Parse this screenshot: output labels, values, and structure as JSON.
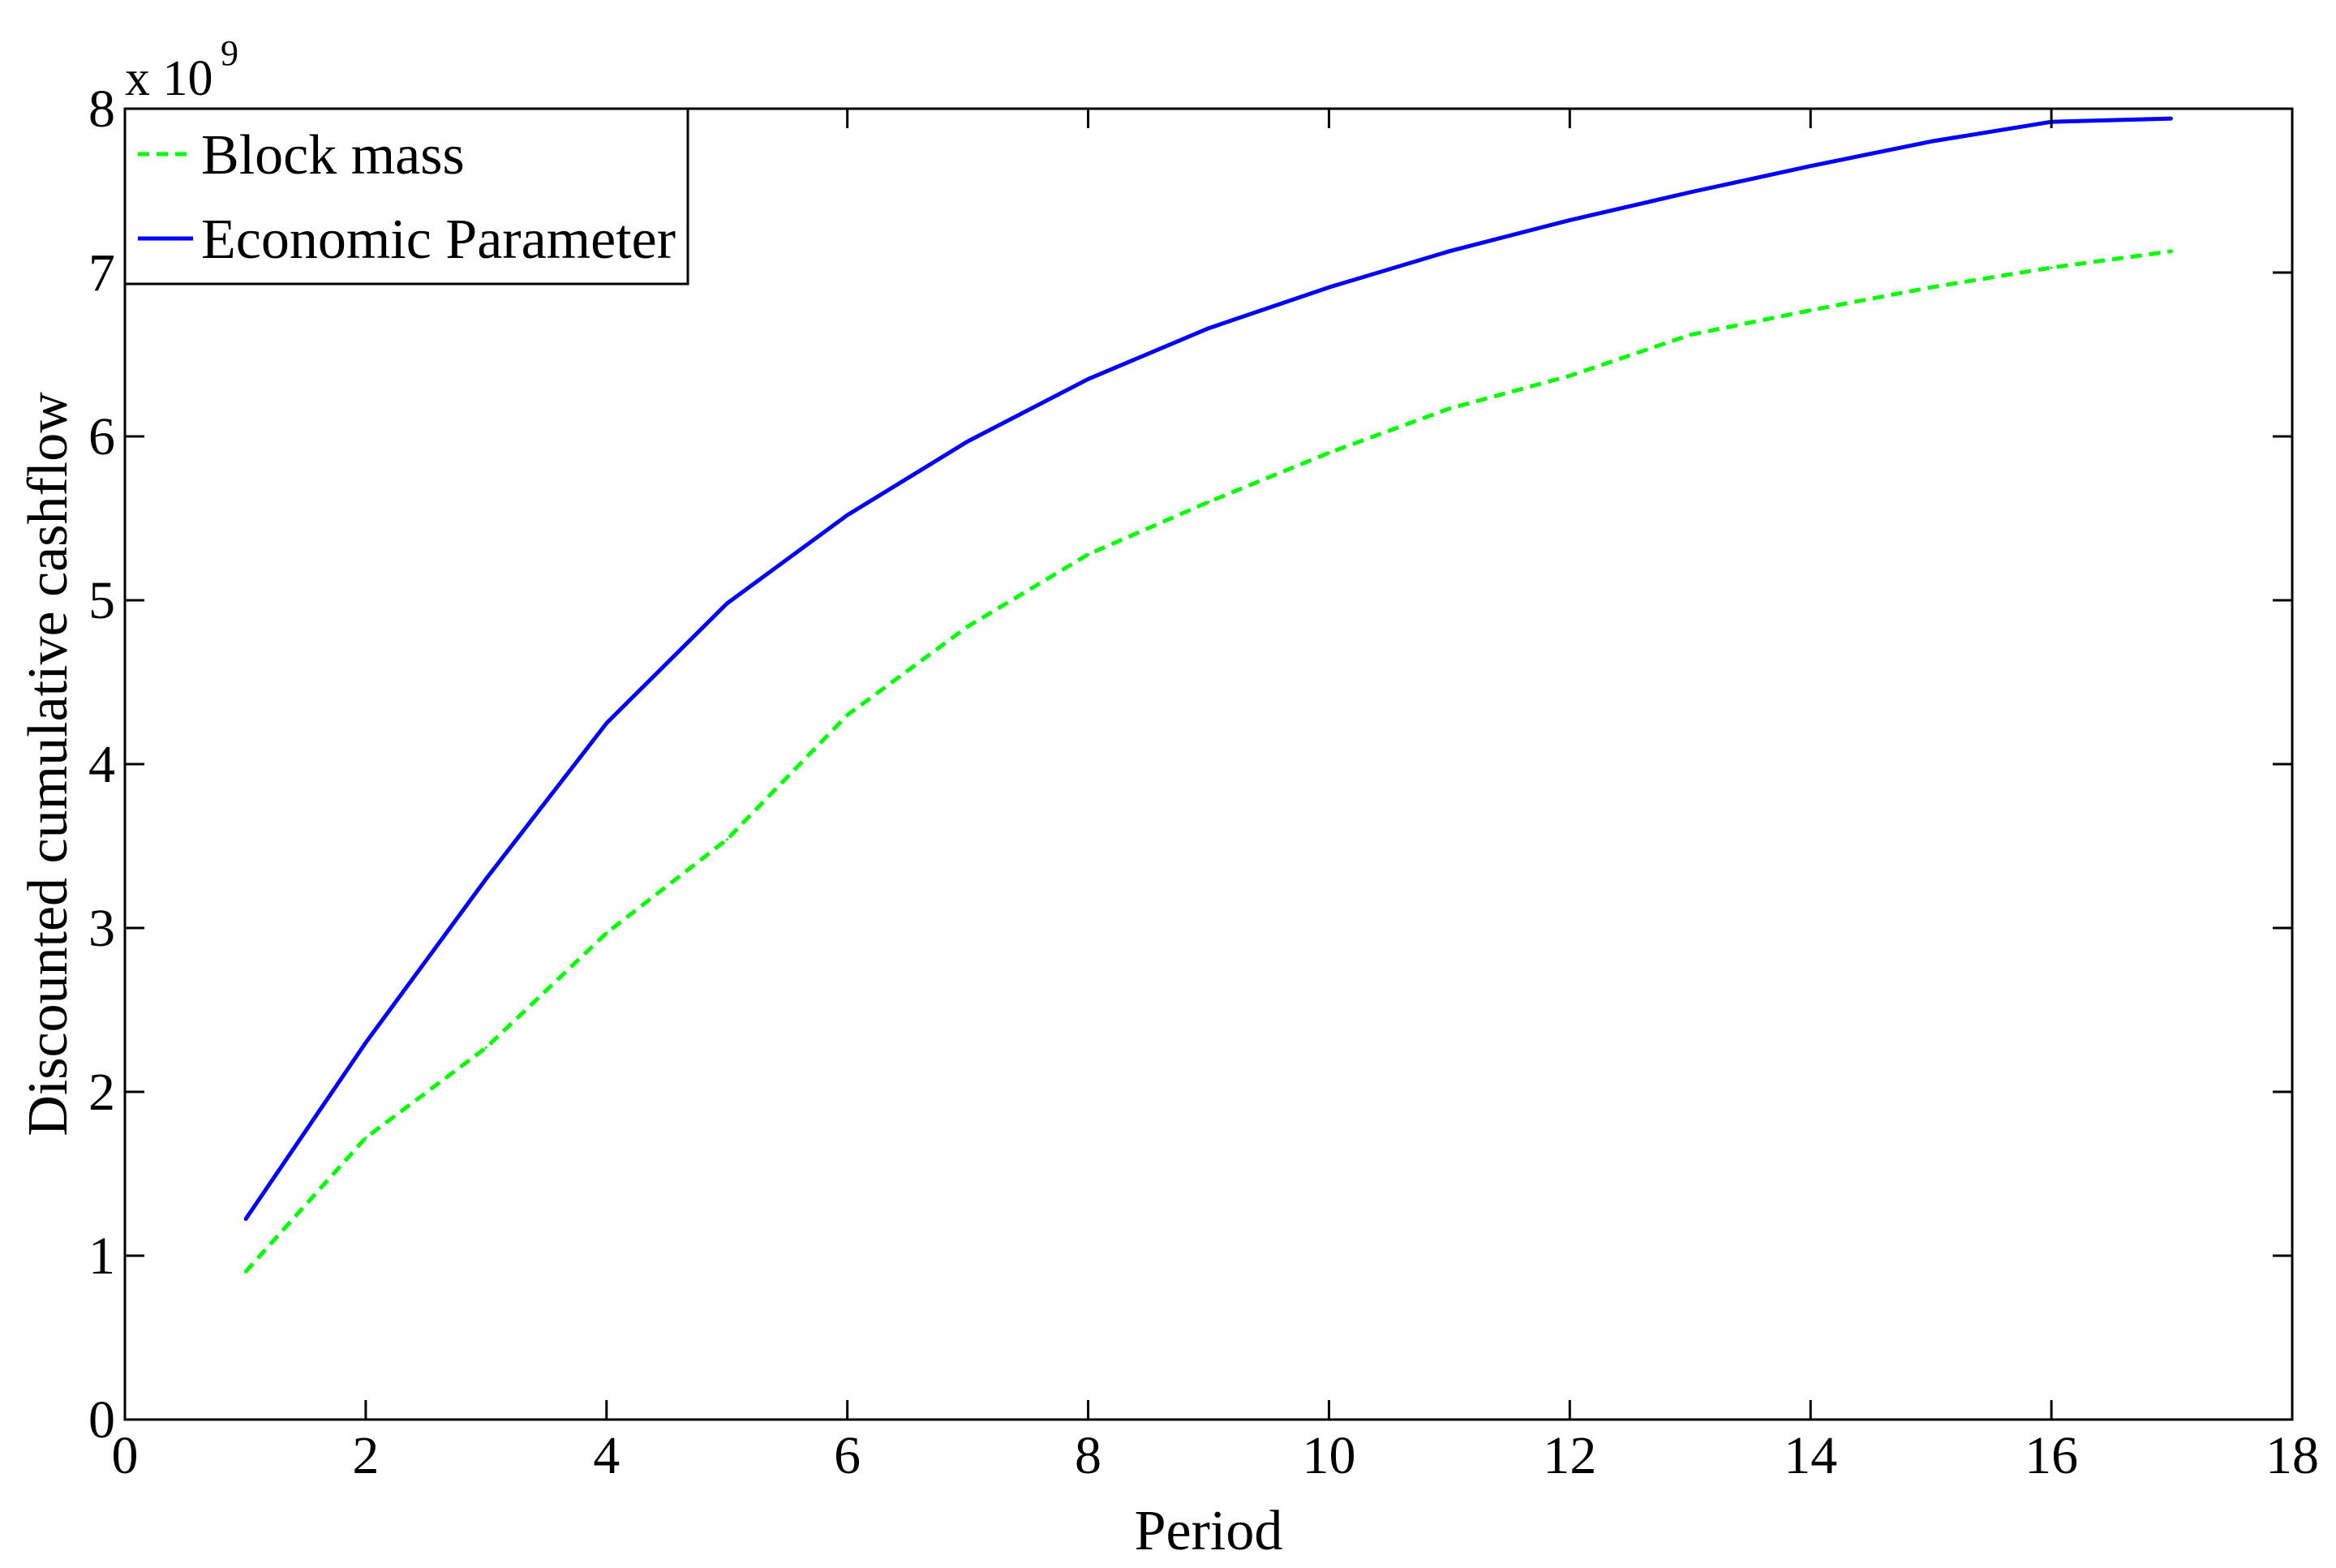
{
  "chart_data": {
    "type": "line",
    "xlabel": "Period",
    "ylabel": "Discounted cumulative cashflow",
    "y_multiplier_base": "x 10",
    "y_multiplier_exponent": "9",
    "xlim": [
      0,
      18
    ],
    "ylim": [
      0,
      8
    ],
    "x_ticks": [
      "0",
      "2",
      "4",
      "6",
      "8",
      "10",
      "12",
      "14",
      "16",
      "18"
    ],
    "y_ticks": [
      "0",
      "1",
      "2",
      "3",
      "4",
      "5",
      "6",
      "7",
      "8"
    ],
    "grid": false,
    "legend_position": "top-left",
    "x": [
      1,
      2,
      3,
      4,
      5,
      6,
      7,
      8,
      9,
      10,
      11,
      12,
      13,
      14,
      15,
      16,
      17
    ],
    "series": [
      {
        "name": "Block mass",
        "color": "#00ff00",
        "line_style": "dashed",
        "values": [
          0.9,
          1.72,
          2.27,
          2.97,
          3.54,
          4.3,
          4.84,
          5.28,
          5.6,
          5.9,
          6.17,
          6.37,
          6.62,
          6.77,
          6.91,
          7.03,
          7.13
        ]
      },
      {
        "name": "Economic Parameter",
        "color": "#0000ff",
        "line_style": "solid",
        "values": [
          1.22,
          2.3,
          3.3,
          4.25,
          4.98,
          5.52,
          5.97,
          6.35,
          6.66,
          6.91,
          7.13,
          7.32,
          7.49,
          7.65,
          7.8,
          7.92,
          7.94
        ]
      }
    ]
  }
}
